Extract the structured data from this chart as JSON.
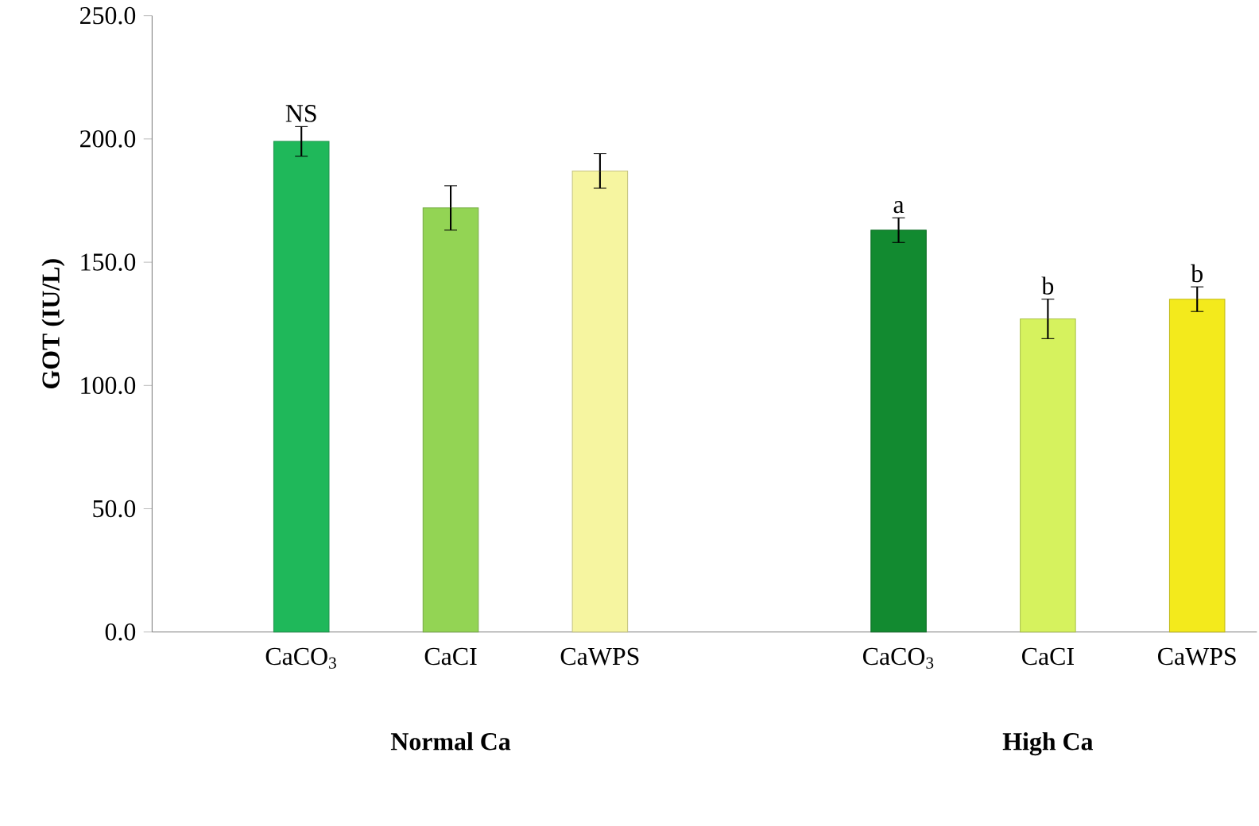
{
  "chart_data": {
    "type": "bar",
    "ylabel": "GOT (IU/L)",
    "categories": [
      "CaCO$_{3}$",
      "CaCI",
      "CaWPS",
      null,
      "CaCO$_{3}$",
      "CaCI",
      "CaWPS"
    ],
    "values": [
      199,
      172,
      187,
      null,
      163,
      127,
      135
    ],
    "errors": [
      6,
      9,
      7,
      null,
      5,
      8,
      5
    ],
    "colors": [
      "#1fb85a",
      "#93d454",
      "#f6f5a0",
      "#ffffff",
      "#128a30",
      "#d6f25e",
      "#f3ea1c"
    ],
    "value_labels": [
      "NS",
      null,
      null,
      null,
      "a",
      "b",
      "b"
    ],
    "ylim": [
      0,
      250
    ],
    "yticks": [
      {
        "value": 0,
        "label": "0.0"
      },
      {
        "value": 50,
        "label": "50.0"
      },
      {
        "value": 100,
        "label": "100.0"
      },
      {
        "value": 150,
        "label": "150.0"
      },
      {
        "value": 200,
        "label": "200.0"
      },
      {
        "value": 250,
        "label": "250.0"
      }
    ],
    "annotations": [
      "Normal Ca",
      "High Ca"
    ]
  }
}
